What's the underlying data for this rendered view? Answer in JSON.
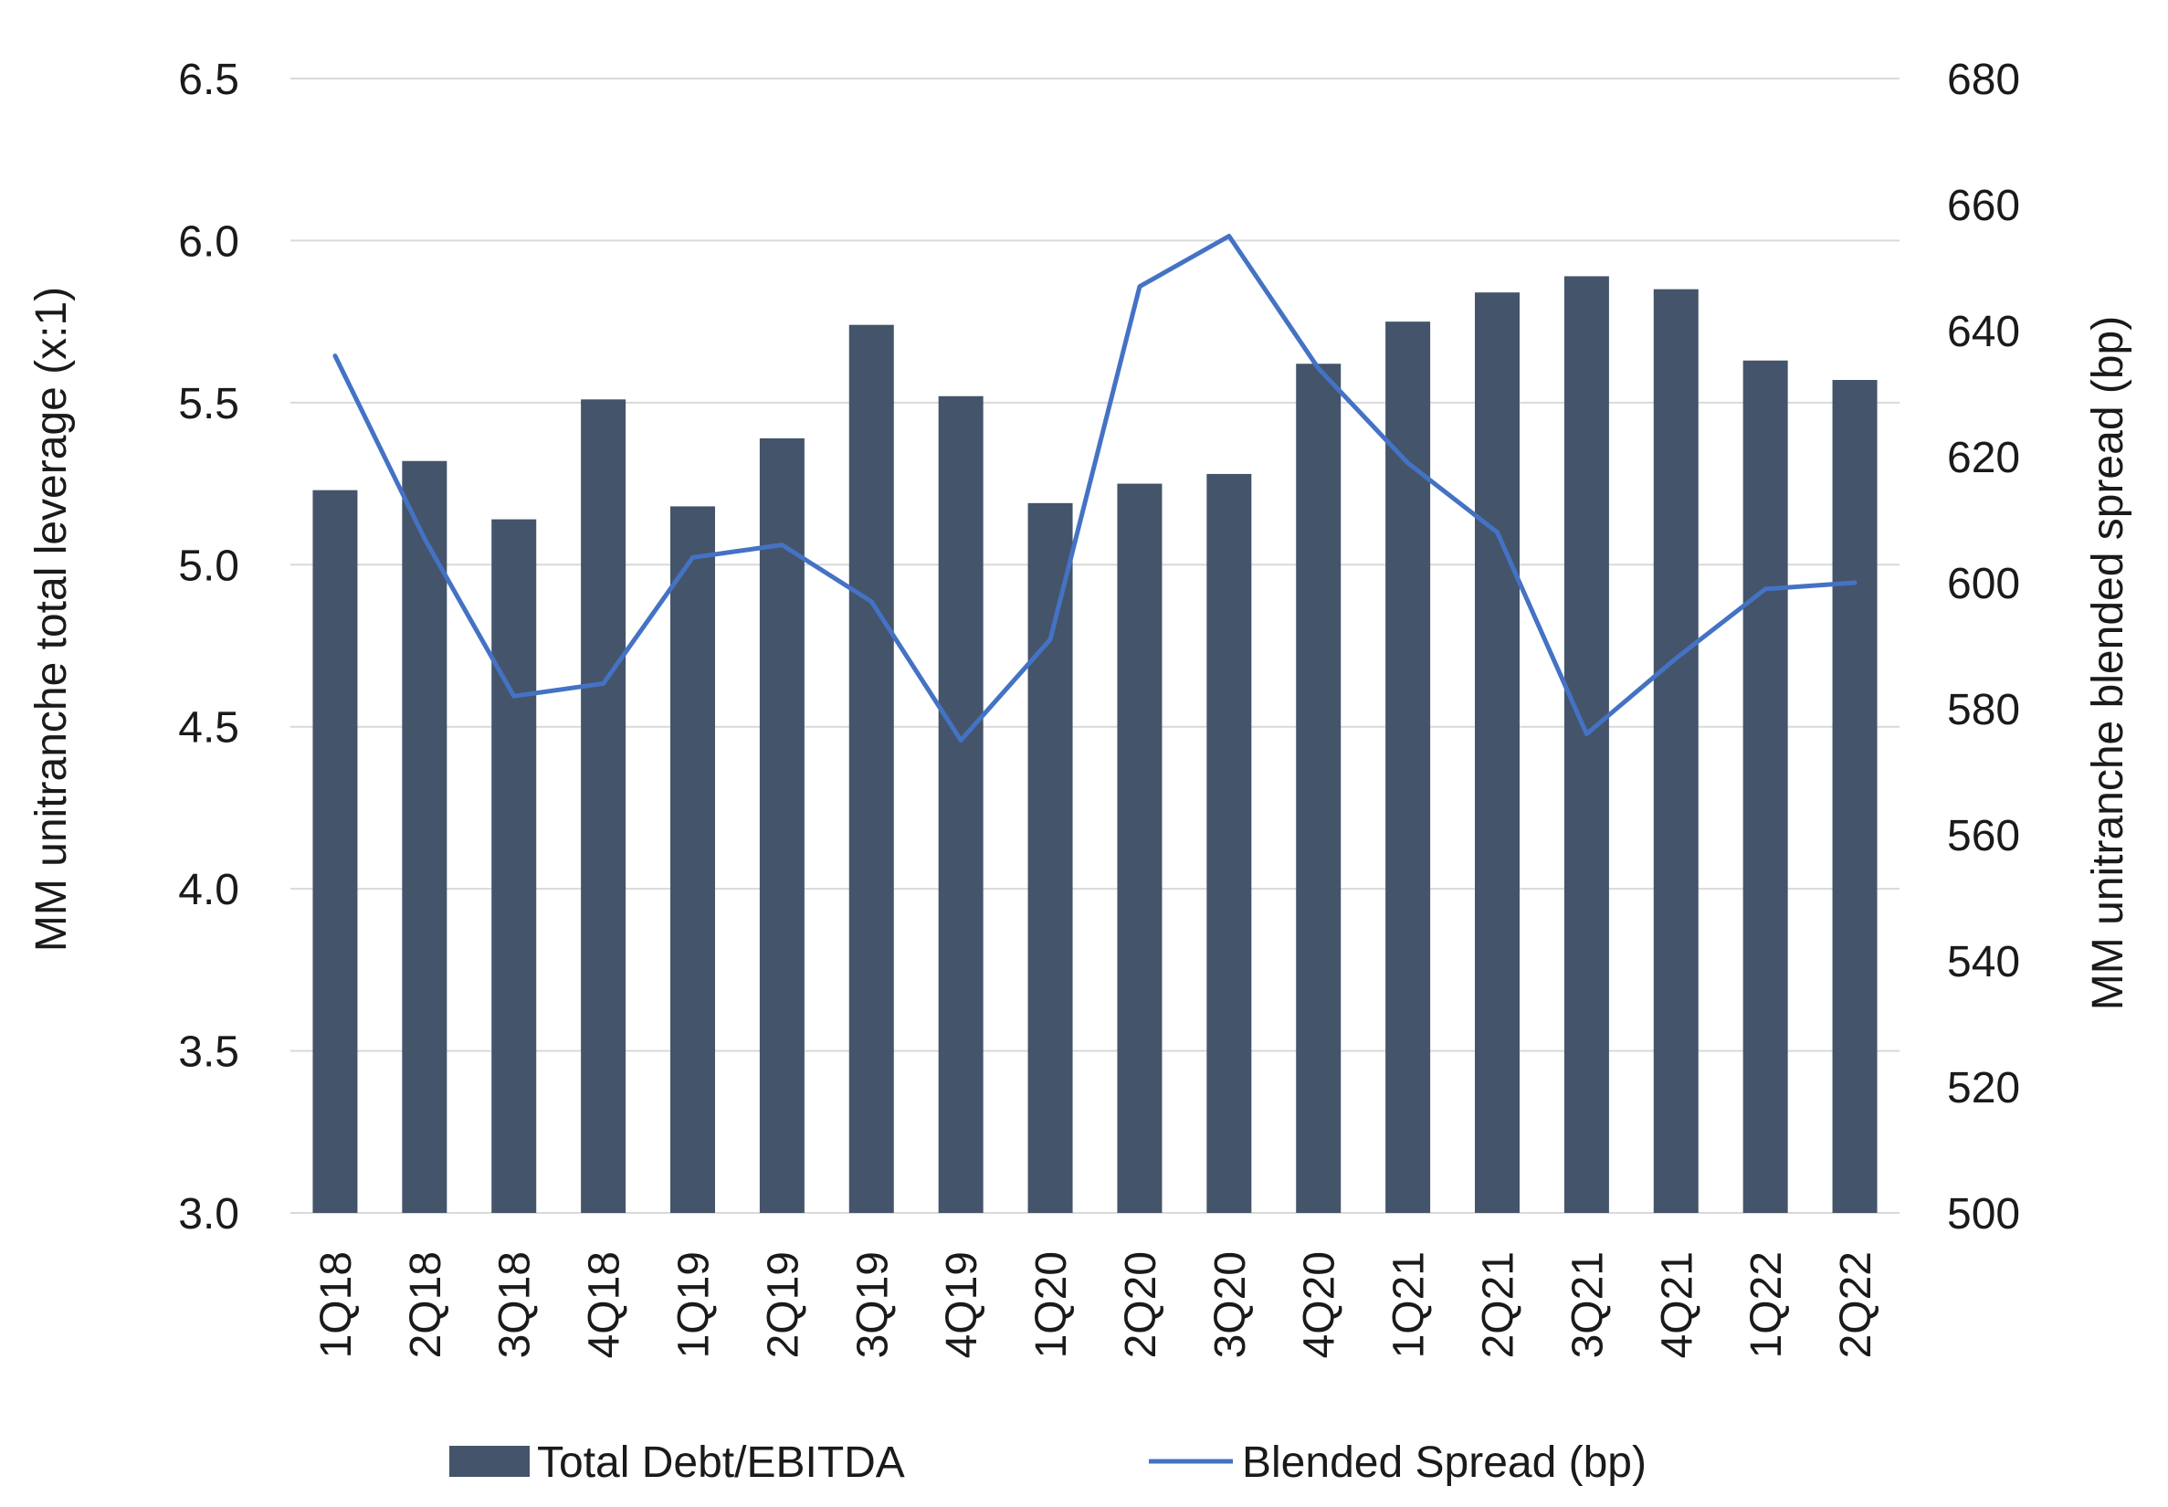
{
  "chart_data": {
    "type": "bar",
    "categories": [
      "1Q18",
      "2Q18",
      "3Q18",
      "4Q18",
      "1Q19",
      "2Q19",
      "3Q19",
      "4Q19",
      "1Q20",
      "2Q20",
      "3Q20",
      "4Q20",
      "1Q21",
      "2Q21",
      "3Q21",
      "4Q21",
      "1Q22",
      "2Q22"
    ],
    "series": [
      {
        "name": "Total Debt/EBITDA",
        "kind": "bar",
        "axis": "left",
        "color": "#44546a",
        "values": [
          5.23,
          5.32,
          5.14,
          5.51,
          5.18,
          5.39,
          5.74,
          5.52,
          5.19,
          5.25,
          5.28,
          5.62,
          5.75,
          5.84,
          5.89,
          5.85,
          5.63,
          5.57
        ]
      },
      {
        "name": "Blended Spread (bp)",
        "kind": "line",
        "axis": "right",
        "color": "#4472c4",
        "values": [
          636,
          607,
          582,
          584,
          604,
          606,
          597,
          575,
          591,
          647,
          655,
          634,
          619,
          608,
          576,
          588,
          599,
          600
        ]
      }
    ],
    "y_left": {
      "label": "MM unitranche total leverage (x:1)",
      "ylim": [
        3.0,
        6.5
      ],
      "ticks": [
        "3.0",
        "3.5",
        "4.0",
        "4.5",
        "5.0",
        "5.5",
        "6.0",
        "6.5"
      ]
    },
    "y_right": {
      "label": "MM unitranche blended spread (bp)",
      "ylim": [
        500,
        680
      ],
      "ticks": [
        "500",
        "520",
        "540",
        "560",
        "580",
        "600",
        "620",
        "640",
        "660",
        "680"
      ]
    },
    "grid": true,
    "legend": "bottom"
  }
}
